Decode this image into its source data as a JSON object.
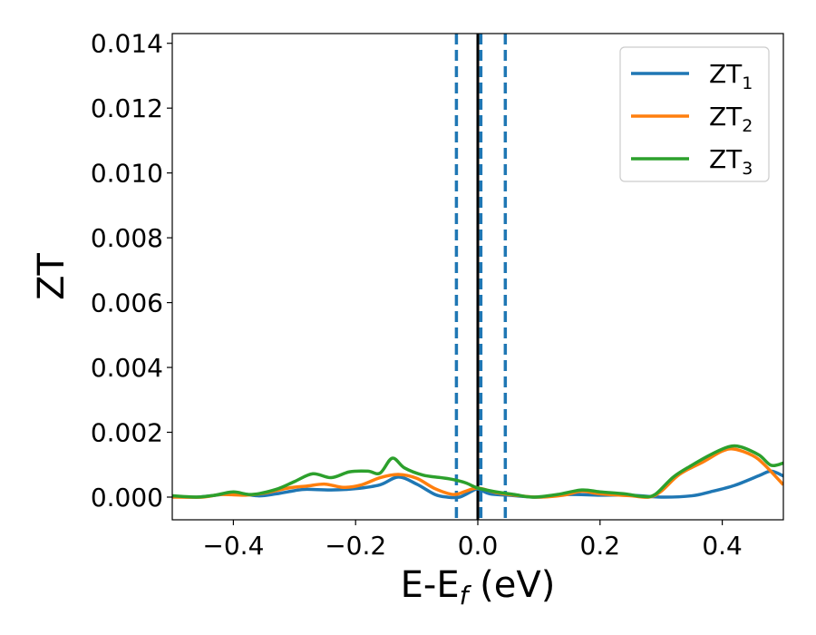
{
  "chart_data": {
    "type": "line",
    "xlabel": {
      "main": "E-E",
      "sub": "f",
      "suffix": " (eV)"
    },
    "ylabel": "ZT",
    "xlim": [
      -0.5,
      0.5
    ],
    "ylim": [
      -0.0007,
      0.0143
    ],
    "xticks": [
      -0.4,
      -0.2,
      0.0,
      0.2,
      0.4
    ],
    "xtick_labels": [
      "−0.4",
      "−0.2",
      "0.0",
      "0.2",
      "0.4"
    ],
    "yticks": [
      0.0,
      0.002,
      0.004,
      0.006,
      0.008,
      0.01,
      0.012,
      0.014
    ],
    "ytick_labels": [
      "0.000",
      "0.002",
      "0.004",
      "0.006",
      "0.008",
      "0.010",
      "0.012",
      "0.014"
    ],
    "grid": false,
    "legend_position": "top-right",
    "vlines": [
      {
        "x": -0.035,
        "style": "dashed",
        "color": "#1f77b4"
      },
      {
        "x": 0.0,
        "style": "solid",
        "color": "#000000"
      },
      {
        "x": 0.005,
        "style": "dashed",
        "color": "#1f77b4"
      },
      {
        "x": 0.045,
        "style": "dashed",
        "color": "#1f77b4"
      }
    ],
    "series": [
      {
        "name": "ZT",
        "sub": "1",
        "color": "#1f77b4",
        "points": [
          [
            -0.5,
            3e-05
          ],
          [
            -0.46,
            0.0
          ],
          [
            -0.42,
            8e-05
          ],
          [
            -0.4,
            0.00014
          ],
          [
            -0.36,
            4e-05
          ],
          [
            -0.33,
            0.0001
          ],
          [
            -0.3,
            0.0002
          ],
          [
            -0.28,
            0.00024
          ],
          [
            -0.24,
            0.00022
          ],
          [
            -0.2,
            0.00026
          ],
          [
            -0.16,
            0.00038
          ],
          [
            -0.13,
            0.00062
          ],
          [
            -0.1,
            0.0004
          ],
          [
            -0.07,
            8e-05
          ],
          [
            -0.05,
            0.0
          ],
          [
            -0.03,
            0.0
          ],
          [
            -0.01,
            0.00018
          ],
          [
            0.0,
            0.00025
          ],
          [
            0.02,
            0.0001
          ],
          [
            0.05,
            6e-05
          ],
          [
            0.1,
            0.0
          ],
          [
            0.15,
            8e-05
          ],
          [
            0.2,
            6e-05
          ],
          [
            0.25,
            6e-05
          ],
          [
            0.3,
            0.0
          ],
          [
            0.35,
            4e-05
          ],
          [
            0.38,
            0.00016
          ],
          [
            0.42,
            0.00036
          ],
          [
            0.46,
            0.00066
          ],
          [
            0.48,
            0.0008
          ],
          [
            0.5,
            0.00065
          ]
        ]
      },
      {
        "name": "ZT",
        "sub": "2",
        "color": "#ff7f0e",
        "points": [
          [
            -0.5,
            0.0
          ],
          [
            -0.45,
            0.0
          ],
          [
            -0.42,
            8e-05
          ],
          [
            -0.38,
            6e-05
          ],
          [
            -0.35,
            0.00012
          ],
          [
            -0.31,
            0.00028
          ],
          [
            -0.28,
            0.00034
          ],
          [
            -0.25,
            0.0004
          ],
          [
            -0.22,
            0.0003
          ],
          [
            -0.19,
            0.00038
          ],
          [
            -0.16,
            0.0006
          ],
          [
            -0.13,
            0.0007
          ],
          [
            -0.1,
            0.00058
          ],
          [
            -0.07,
            0.00026
          ],
          [
            -0.04,
            8e-05
          ],
          [
            -0.02,
            0.00018
          ],
          [
            0.0,
            0.00028
          ],
          [
            0.03,
            0.00014
          ],
          [
            0.07,
            4e-05
          ],
          [
            0.1,
            0.0
          ],
          [
            0.14,
            6e-05
          ],
          [
            0.17,
            0.00018
          ],
          [
            0.2,
            0.0001
          ],
          [
            0.25,
            4e-05
          ],
          [
            0.28,
            0.0
          ],
          [
            0.3,
            0.00018
          ],
          [
            0.33,
            0.0007
          ],
          [
            0.37,
            0.0011
          ],
          [
            0.4,
            0.00142
          ],
          [
            0.42,
            0.00148
          ],
          [
            0.45,
            0.00128
          ],
          [
            0.47,
            0.00098
          ],
          [
            0.5,
            0.00038
          ]
        ]
      },
      {
        "name": "ZT",
        "sub": "3",
        "color": "#2ca02c",
        "points": [
          [
            -0.5,
            4e-05
          ],
          [
            -0.46,
            0.0
          ],
          [
            -0.43,
            6e-05
          ],
          [
            -0.4,
            0.00016
          ],
          [
            -0.37,
            8e-05
          ],
          [
            -0.33,
            0.00024
          ],
          [
            -0.3,
            0.00048
          ],
          [
            -0.27,
            0.00072
          ],
          [
            -0.24,
            0.0006
          ],
          [
            -0.21,
            0.00078
          ],
          [
            -0.18,
            0.0008
          ],
          [
            -0.16,
            0.00074
          ],
          [
            -0.14,
            0.0012
          ],
          [
            -0.12,
            0.0009
          ],
          [
            -0.09,
            0.00068
          ],
          [
            -0.06,
            0.0006
          ],
          [
            -0.04,
            0.00054
          ],
          [
            -0.02,
            0.00044
          ],
          [
            0.0,
            0.00028
          ],
          [
            0.03,
            0.00016
          ],
          [
            0.06,
            8e-05
          ],
          [
            0.09,
            0.0
          ],
          [
            0.13,
            8e-05
          ],
          [
            0.17,
            0.00022
          ],
          [
            0.2,
            0.00016
          ],
          [
            0.24,
            0.0001
          ],
          [
            0.27,
            2e-05
          ],
          [
            0.29,
            8e-05
          ],
          [
            0.32,
            0.00062
          ],
          [
            0.35,
            0.00098
          ],
          [
            0.38,
            0.0013
          ],
          [
            0.41,
            0.00155
          ],
          [
            0.43,
            0.00155
          ],
          [
            0.46,
            0.0013
          ],
          [
            0.48,
            0.00098
          ],
          [
            0.5,
            0.00105
          ]
        ]
      }
    ]
  }
}
